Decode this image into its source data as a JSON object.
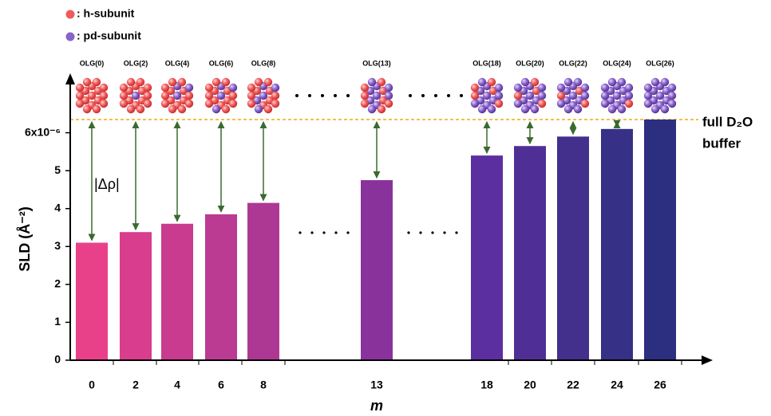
{
  "chart_data": {
    "type": "bar",
    "categories": [
      0,
      2,
      4,
      6,
      8,
      13,
      18,
      20,
      22,
      24,
      26
    ],
    "cluster_labels": [
      "OLG(0)",
      "OLG(2)",
      "OLG(4)",
      "OLG(6)",
      "OLG(8)",
      "OLG(13)",
      "OLG(18)",
      "OLG(20)",
      "OLG(22)",
      "OLG(24)",
      "OLG(26)"
    ],
    "values": [
      3.1,
      3.38,
      3.6,
      3.85,
      4.15,
      4.75,
      5.4,
      5.65,
      5.9,
      6.1,
      6.35
    ],
    "colors": [
      "#e8418a",
      "#d93d8d",
      "#c93b8f",
      "#bb3a92",
      "#ad3894",
      "#8a329b",
      "#5b2fa0",
      "#4f2f96",
      "#42308c",
      "#363086",
      "#2c2f80"
    ],
    "ylim": [
      0,
      7.4
    ],
    "yticks": [
      0,
      1,
      2,
      3,
      4,
      5,
      {
        "value": 6,
        "label": "6x10⁻⁶"
      }
    ],
    "xlabel": "m",
    "ylabel": "SLD (Å⁻²)",
    "annotation": "|Δρ|",
    "reference_line": {
      "value": 6.35,
      "label_lines": [
        "full D₂O",
        "buffer"
      ],
      "color": "#f0a818"
    },
    "legend": [
      {
        "name": ": h-subunit",
        "color": "#f05a5a"
      },
      {
        "name": ": pd-subunit",
        "color": "#8a63c9"
      }
    ]
  }
}
